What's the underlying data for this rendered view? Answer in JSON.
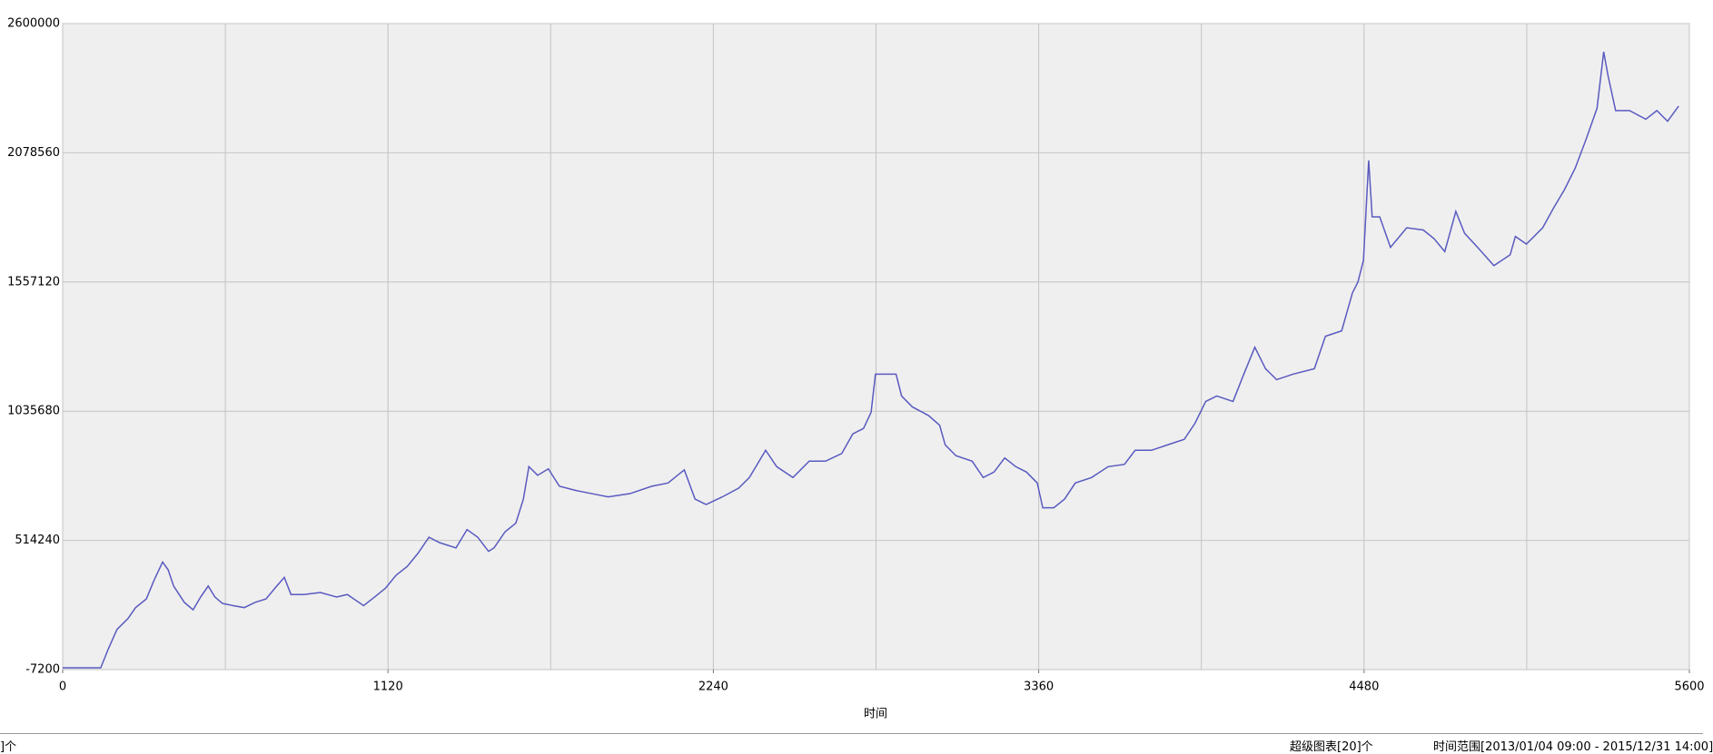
{
  "chart_data": {
    "type": "line",
    "x_label": "时间",
    "xlim": [
      0,
      5600
    ],
    "xticks": [
      0,
      1120,
      2240,
      3360,
      4480,
      5600
    ],
    "xminorticks": [
      560,
      1680,
      2800,
      3920,
      5040
    ],
    "ylim": [
      -7200,
      2600000
    ],
    "yticks": [
      -7200,
      514240,
      1035680,
      1557120,
      2078560,
      2600000
    ],
    "grid": true,
    "series": [
      {
        "color": "#5a5ac0",
        "x": [
          0,
          131,
          157,
          187,
          225,
          251,
          288,
          314,
          344,
          363,
          382,
          419,
          449,
          475,
          501,
          524,
          550,
          587,
          625,
          662,
          700,
          737,
          763,
          786,
          830,
          887,
          943,
          980,
          1036,
          1074,
          1111,
          1148,
          1186,
          1223,
          1261,
          1298,
          1354,
          1392,
          1429,
          1466,
          1485,
          1523,
          1560,
          1586,
          1605,
          1635,
          1672,
          1710,
          1766,
          1822,
          1878,
          1953,
          2028,
          2084,
          2140,
          2177,
          2215,
          2271,
          2327,
          2364,
          2420,
          2458,
          2514,
          2570,
          2626,
          2682,
          2720,
          2757,
          2783,
          2798,
          2831,
          2869,
          2888,
          2925,
          2981,
          3019,
          3038,
          3075,
          3131,
          3169,
          3206,
          3243,
          3281,
          3318,
          3355,
          3374,
          3412,
          3449,
          3486,
          3542,
          3599,
          3655,
          3692,
          3748,
          3804,
          3861,
          3898,
          3935,
          3973,
          4029,
          4066,
          4104,
          4141,
          4179,
          4235,
          4309,
          4347,
          4403,
          4440,
          4459,
          4478,
          4496,
          4508,
          4534,
          4571,
          4627,
          4684,
          4721,
          4758,
          4796,
          4826,
          4871,
          4927,
          4983,
          5001,
          5039,
          5095,
          5132,
          5170,
          5207,
          5245,
          5282,
          5305,
          5320,
          5346,
          5394,
          5450,
          5488,
          5525,
          5563
        ],
        "values": [
          0,
          0,
          76000,
          155000,
          199000,
          243000,
          278000,
          352000,
          427000,
          396000,
          330000,
          264000,
          234000,
          286000,
          330000,
          286000,
          260000,
          251000,
          243000,
          264000,
          278000,
          330000,
          365000,
          296000,
          296000,
          304000,
          286000,
          296000,
          251000,
          286000,
          321000,
          374000,
          409000,
          462000,
          527000,
          505000,
          484000,
          558000,
          527000,
          470000,
          484000,
          549000,
          584000,
          681000,
          812000,
          777000,
          803000,
          733000,
          716000,
          703000,
          690000,
          703000,
          733000,
          746000,
          799000,
          681000,
          659000,
          690000,
          725000,
          768000,
          878000,
          812000,
          768000,
          834000,
          834000,
          865000,
          944000,
          966000,
          1031000,
          1185000,
          1185000,
          1185000,
          1097000,
          1053000,
          1018000,
          979000,
          900000,
          856000,
          834000,
          768000,
          790000,
          847000,
          812000,
          790000,
          746000,
          646000,
          646000,
          681000,
          746000,
          768000,
          812000,
          821000,
          878000,
          878000,
          900000,
          922000,
          987000,
          1075000,
          1097000,
          1075000,
          1185000,
          1294000,
          1207000,
          1163000,
          1185000,
          1207000,
          1338000,
          1360000,
          1513000,
          1557000,
          1645000,
          2048000,
          1820000,
          1820000,
          1697000,
          1776000,
          1767000,
          1732000,
          1680000,
          1842000,
          1754000,
          1697000,
          1623000,
          1667000,
          1741000,
          1710000,
          1776000,
          1855000,
          1930000,
          2017000,
          2135000,
          2258000,
          2486000,
          2390000,
          2249000,
          2249000,
          2214000,
          2249000,
          2206000,
          2267000
        ]
      }
    ]
  },
  "status_bar": {
    "left": "]个",
    "charts": "超级图表[20]个",
    "time_range": "时间范围[2013/01/04 09:00 - 2015/12/31 14:00]"
  }
}
